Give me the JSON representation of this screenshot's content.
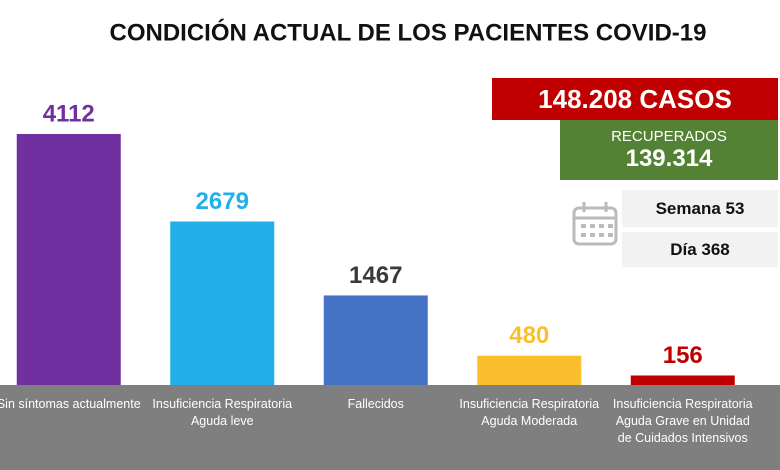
{
  "chart_data": {
    "type": "bar",
    "title": "CONDICIÓN ACTUAL DE LOS PACIENTES COVID-19",
    "categories": [
      "Sin síntomas actualmente",
      "Insuficiencia Respiratoria Aguda leve",
      "Fallecidos",
      "Insuficiencia Respiratoria Aguda Moderada",
      "Insuficiencia Respiratoria Aguda Grave en Unidad de Cuidados Intensivos"
    ],
    "values": [
      4112,
      2679,
      1467,
      480,
      156
    ],
    "colors": [
      "#7030a0",
      "#22b0ea",
      "#4472c4",
      "#fbbf2d",
      "#c00000"
    ],
    "value_label_colors": [
      "#7030a0",
      "#22b0ea",
      "#3a3a3a",
      "#fbbf2d",
      "#c00000"
    ]
  },
  "info": {
    "cases": "148.208 CASOS",
    "recovered_label": "RECUPERADOS",
    "recovered": "139.314",
    "week": "Semana 53",
    "day": "Día 368"
  }
}
